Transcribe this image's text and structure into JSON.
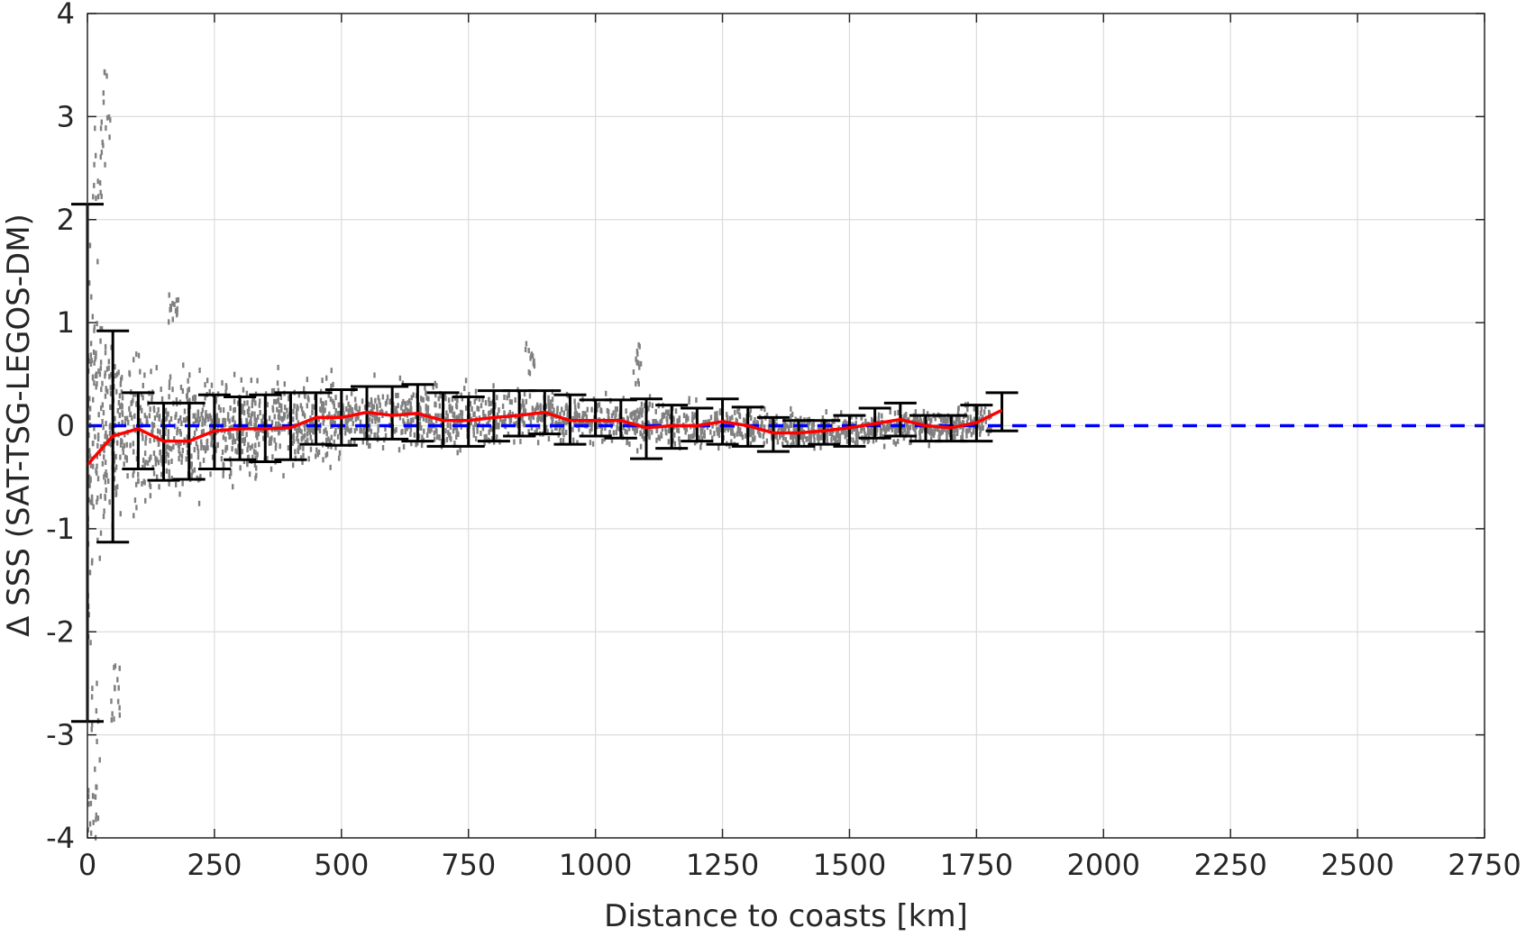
{
  "chart_data": {
    "type": "scatter",
    "title": "",
    "xlabel": "Distance to coasts [km]",
    "ylabel": "Δ SSS (SAT-TSG-LEGOS-DM)",
    "xlim": [
      0,
      2750
    ],
    "ylim": [
      -4,
      4
    ],
    "xticks": [
      0,
      250,
      500,
      750,
      1000,
      1250,
      1500,
      1750,
      2000,
      2250,
      2500,
      2750
    ],
    "yticks": [
      -4,
      -3,
      -2,
      -1,
      0,
      1,
      2,
      3,
      4
    ],
    "xtick_labels": [
      "0",
      "250",
      "500",
      "750",
      "1000",
      "1250",
      "1500",
      "1750",
      "2000",
      "2250",
      "2500",
      "2750"
    ],
    "ytick_labels": [
      "-4",
      "-3",
      "-2",
      "-1",
      "0",
      "1",
      "2",
      "3",
      "4"
    ],
    "grid": true,
    "colors": {
      "scatter": "#808080",
      "mean_line": "#ff0000",
      "zero_line": "#0000ff",
      "error_bars": "#000000",
      "grid": "#dcdcdc",
      "axes": "#262626"
    },
    "zero_line": {
      "y": 0,
      "style": "dashed",
      "x_range": [
        0,
        2750
      ]
    },
    "scatter_envelope": {
      "x": [
        0,
        25,
        50,
        100,
        150,
        200,
        250,
        300,
        400,
        500,
        600,
        700,
        800,
        900,
        1000,
        1100,
        1200,
        1300,
        1400,
        1500,
        1600,
        1700,
        1780
      ],
      "center": [
        -0.2,
        0.0,
        -0.05,
        -0.05,
        -0.15,
        -0.12,
        -0.05,
        -0.02,
        0.0,
        0.08,
        0.1,
        0.05,
        0.08,
        0.1,
        0.05,
        0.0,
        0.0,
        0.0,
        -0.05,
        -0.05,
        0.0,
        0.0,
        0.05
      ],
      "spread": [
        1.8,
        1.2,
        0.8,
        0.7,
        0.6,
        0.55,
        0.45,
        0.42,
        0.38,
        0.35,
        0.3,
        0.28,
        0.25,
        0.23,
        0.2,
        0.2,
        0.18,
        0.16,
        0.15,
        0.15,
        0.15,
        0.15,
        0.18
      ]
    },
    "scatter_outliers": [
      {
        "x": 35,
        "y_min": 2.5,
        "y_max": 3.5
      },
      {
        "x": 20,
        "y_min": 2.2,
        "y_max": 3.0
      },
      {
        "x": 15,
        "y_min": -3.9,
        "y_max": -2.5
      },
      {
        "x": 10,
        "y_min": -4.0,
        "y_max": -3.5
      },
      {
        "x": 55,
        "y_min": -2.9,
        "y_max": -2.3
      },
      {
        "x": 170,
        "y_min": 1.0,
        "y_max": 1.3
      },
      {
        "x": 870,
        "y_min": 0.5,
        "y_max": 0.9
      },
      {
        "x": 1080,
        "y_min": 0.4,
        "y_max": 0.85
      }
    ],
    "series": [
      {
        "type": "line",
        "x": [
          0,
          50,
          100,
          150,
          200,
          250,
          300,
          350,
          400,
          450,
          500,
          550,
          600,
          650,
          700,
          750,
          800,
          850,
          900,
          950,
          1000,
          1050,
          1100,
          1150,
          1200,
          1250,
          1300,
          1350,
          1400,
          1450,
          1500,
          1550,
          1600,
          1650,
          1700,
          1750,
          1800
        ],
        "y": [
          -0.38,
          -0.1,
          -0.03,
          -0.15,
          -0.15,
          -0.05,
          -0.03,
          -0.03,
          -0.02,
          0.08,
          0.08,
          0.13,
          0.1,
          0.12,
          0.05,
          0.05,
          0.08,
          0.1,
          0.13,
          0.05,
          0.05,
          0.05,
          -0.02,
          0.0,
          0.0,
          0.04,
          0.0,
          -0.07,
          -0.07,
          -0.05,
          -0.02,
          0.02,
          0.06,
          0.0,
          -0.02,
          0.03,
          0.15
        ]
      },
      {
        "type": "errorbar",
        "x": [
          0,
          50,
          100,
          150,
          200,
          250,
          300,
          350,
          400,
          450,
          500,
          550,
          600,
          650,
          700,
          750,
          800,
          850,
          900,
          950,
          1000,
          1050,
          1100,
          1150,
          1200,
          1250,
          1300,
          1350,
          1400,
          1450,
          1500,
          1550,
          1600,
          1650,
          1700,
          1750,
          1800
        ],
        "y_low": [
          -2.87,
          -1.13,
          -0.42,
          -0.53,
          -0.52,
          -0.42,
          -0.33,
          -0.35,
          -0.33,
          -0.18,
          -0.19,
          -0.13,
          -0.13,
          -0.15,
          -0.2,
          -0.2,
          -0.15,
          -0.1,
          -0.08,
          -0.18,
          -0.1,
          -0.12,
          -0.32,
          -0.22,
          -0.15,
          -0.18,
          -0.2,
          -0.25,
          -0.2,
          -0.18,
          -0.2,
          -0.12,
          -0.1,
          -0.15,
          -0.15,
          -0.15,
          -0.05
        ],
        "y_high": [
          2.15,
          0.92,
          0.32,
          0.22,
          0.22,
          0.3,
          0.28,
          0.3,
          0.32,
          0.32,
          0.35,
          0.38,
          0.38,
          0.4,
          0.32,
          0.28,
          0.34,
          0.34,
          0.34,
          0.3,
          0.25,
          0.25,
          0.26,
          0.2,
          0.17,
          0.26,
          0.18,
          0.08,
          0.05,
          0.05,
          0.1,
          0.17,
          0.22,
          0.1,
          0.1,
          0.2,
          0.32
        ]
      }
    ]
  }
}
